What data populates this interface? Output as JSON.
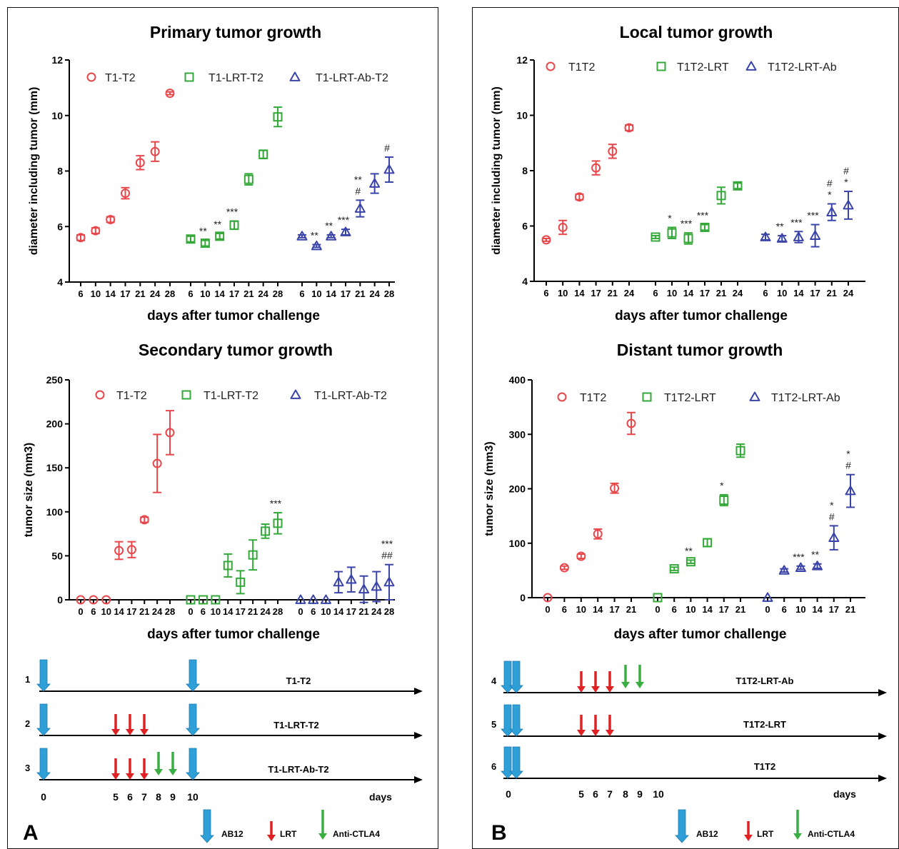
{
  "panels": [
    {
      "label": "A",
      "diagram_title_1": "T1-T2"
    },
    {
      "label": "B"
    }
  ],
  "colors": {
    "red": "#e8474b",
    "green": "#34a93a",
    "blue": "#3a44a8",
    "ab12": "#2f9fd8",
    "lrt": "#e02124",
    "ctla4": "#3aae43"
  },
  "chart_data": [
    {
      "id": "primary",
      "type": "scatter",
      "title": "Primary tumor growth",
      "xlabel": "days after tumor challenge",
      "ylabel": "diameter including tumor (mm)",
      "ylim": [
        4,
        12
      ],
      "yticks": [
        4,
        6,
        8,
        10,
        12
      ],
      "legend_position": "top",
      "series": [
        {
          "name": "T1-T2",
          "marker": "circle",
          "color": "#e8474b",
          "x": [
            6,
            10,
            14,
            17,
            21,
            24,
            28
          ],
          "y": [
            5.6,
            5.85,
            6.25,
            7.2,
            8.3,
            8.7,
            10.8
          ],
          "err": [
            0.1,
            0.1,
            0.1,
            0.2,
            0.25,
            0.35,
            0.05
          ],
          "annotations": [
            "",
            "",
            "",
            "",
            "",
            "",
            ""
          ]
        },
        {
          "name": "T1-LRT-T2",
          "marker": "square",
          "color": "#34a93a",
          "x": [
            6,
            10,
            14,
            17,
            21,
            24,
            28
          ],
          "y": [
            5.55,
            5.4,
            5.65,
            6.05,
            7.7,
            8.6,
            9.95
          ],
          "err": [
            0.1,
            0.1,
            0.1,
            0.15,
            0.2,
            0.15,
            0.35
          ],
          "annotations": [
            "",
            "**",
            "**",
            "***",
            "",
            "",
            ""
          ]
        },
        {
          "name": "T1-LRT-Ab-T2",
          "marker": "triangle",
          "color": "#3a44a8",
          "x": [
            6,
            10,
            14,
            17,
            21,
            24,
            28
          ],
          "y": [
            5.65,
            5.3,
            5.65,
            5.8,
            6.65,
            7.55,
            8.05
          ],
          "err": [
            0.05,
            0.05,
            0.05,
            0.1,
            0.3,
            0.35,
            0.45
          ],
          "annotations": [
            "",
            "**",
            "**",
            "***",
            "**\n#",
            "",
            "#"
          ]
        }
      ]
    },
    {
      "id": "local",
      "type": "scatter",
      "title": "Local tumor growth",
      "xlabel": "days after tumor challenge",
      "ylabel": "diameter including tumor (mm)",
      "ylim": [
        4,
        12
      ],
      "yticks": [
        4,
        6,
        8,
        10,
        12
      ],
      "legend_position": "top",
      "series": [
        {
          "name": "T1T2",
          "marker": "circle",
          "color": "#e8474b",
          "x": [
            6,
            10,
            14,
            17,
            21,
            24
          ],
          "y": [
            5.5,
            5.95,
            7.05,
            8.1,
            8.7,
            9.55
          ],
          "err": [
            0.05,
            0.25,
            0.1,
            0.25,
            0.25,
            0.1
          ],
          "annotations": [
            "",
            "",
            "",
            "",
            "",
            ""
          ]
        },
        {
          "name": "T1T2-LRT",
          "marker": "square",
          "color": "#34a93a",
          "x": [
            6,
            10,
            14,
            17,
            21,
            24
          ],
          "y": [
            5.6,
            5.75,
            5.55,
            5.95,
            7.1,
            7.45
          ],
          "err": [
            0.05,
            0.2,
            0.2,
            0.1,
            0.3,
            0.1
          ],
          "annotations": [
            "",
            "*",
            "***",
            "***",
            "",
            ""
          ]
        },
        {
          "name": "T1T2-LRT-Ab",
          "marker": "triangle",
          "color": "#3a44a8",
          "x": [
            6,
            10,
            14,
            17,
            21,
            24
          ],
          "y": [
            5.6,
            5.55,
            5.6,
            5.65,
            6.5,
            6.75
          ],
          "err": [
            0.1,
            0.1,
            0.2,
            0.4,
            0.3,
            0.5
          ],
          "annotations": [
            "",
            "**",
            "***",
            "***",
            "#\n*",
            "#\n*"
          ]
        }
      ]
    },
    {
      "id": "secondary",
      "type": "scatter",
      "title": "Secondary tumor growth",
      "xlabel": "days after tumor challenge",
      "ylabel": "tumor size (mm3)",
      "ylim": [
        0,
        250
      ],
      "yticks": [
        0,
        50,
        100,
        150,
        200,
        250
      ],
      "legend_position": "top",
      "series": [
        {
          "name": "T1-T2",
          "marker": "circle",
          "color": "#e8474b",
          "x": [
            0,
            6,
            10,
            14,
            17,
            21,
            24,
            28
          ],
          "y": [
            0,
            0,
            0,
            56,
            57,
            91,
            155,
            190
          ],
          "err": [
            0,
            0,
            0,
            10,
            9,
            3,
            33,
            25
          ],
          "annotations": [
            "",
            "",
            "",
            "",
            "",
            "",
            "",
            ""
          ]
        },
        {
          "name": "T1-LRT-T2",
          "marker": "square",
          "color": "#34a93a",
          "x": [
            0,
            6,
            10,
            14,
            17,
            21,
            24,
            28
          ],
          "y": [
            0,
            0,
            0,
            39,
            20,
            51,
            78,
            87
          ],
          "err": [
            0,
            0,
            0,
            13,
            13,
            17,
            8,
            12
          ],
          "annotations": [
            "",
            "",
            "",
            "",
            "",
            "",
            "",
            "***"
          ]
        },
        {
          "name": "T1-LRT-Ab-T2",
          "marker": "triangle",
          "color": "#3a44a8",
          "x": [
            0,
            6,
            10,
            14,
            17,
            21,
            24,
            28
          ],
          "y": [
            0,
            0,
            0,
            20,
            23,
            12,
            15,
            20
          ],
          "err": [
            0,
            0,
            0,
            12,
            14,
            15,
            17,
            20
          ],
          "annotations": [
            "",
            "",
            "",
            "",
            "",
            "",
            "",
            "***\n##"
          ]
        }
      ]
    },
    {
      "id": "distant",
      "type": "scatter",
      "title": "Distant tumor growth",
      "xlabel": "days after tumor challenge",
      "ylabel": "tumor size (mm3)",
      "ylim": [
        0,
        400
      ],
      "yticks": [
        0,
        100,
        200,
        300,
        400
      ],
      "legend_position": "top",
      "series": [
        {
          "name": "T1T2",
          "marker": "circle",
          "color": "#e8474b",
          "x": [
            0,
            6,
            10,
            14,
            17,
            21
          ],
          "y": [
            0,
            55,
            76,
            117,
            201,
            320
          ],
          "err": [
            0,
            3,
            4,
            9,
            9,
            20
          ],
          "annotations": [
            "",
            "",
            "",
            "",
            "",
            ""
          ]
        },
        {
          "name": "T1T2-LRT",
          "marker": "square",
          "color": "#34a93a",
          "x": [
            0,
            6,
            10,
            14,
            17,
            21
          ],
          "y": [
            0,
            53,
            66,
            101,
            179,
            270
          ],
          "err": [
            0,
            3,
            3,
            7,
            10,
            12
          ],
          "annotations": [
            "",
            "",
            "**",
            "",
            "*",
            ""
          ]
        },
        {
          "name": "T1T2-LRT-Ab",
          "marker": "triangle",
          "color": "#3a44a8",
          "x": [
            0,
            6,
            10,
            14,
            17,
            21
          ],
          "y": [
            0,
            50,
            55,
            58,
            110,
            196
          ],
          "err": [
            0,
            3,
            3,
            4,
            22,
            30
          ],
          "annotations": [
            "",
            "",
            "***",
            "**",
            "*\n#",
            "*\n#"
          ]
        }
      ]
    }
  ],
  "schedules": [
    {
      "panel": "A",
      "days_label": "days",
      "day_ticks": [
        "0",
        "5",
        "6",
        "7",
        "8",
        "9",
        "10"
      ],
      "rows": [
        {
          "number": "1",
          "label": "T1-T2",
          "AB12": [
            0,
            10
          ],
          "LRT": [],
          "Anti-CTLA4": []
        },
        {
          "number": "2",
          "label": "T1-LRT-T2",
          "AB12": [
            0,
            10
          ],
          "LRT": [
            5,
            6,
            7
          ],
          "Anti-CTLA4": []
        },
        {
          "number": "3",
          "label": "T1-LRT-Ab-T2",
          "AB12": [
            0,
            10
          ],
          "LRT": [
            5,
            6,
            7
          ],
          "Anti-CTLA4": [
            8,
            9
          ]
        }
      ]
    },
    {
      "panel": "B",
      "days_label": "days",
      "day_ticks": [
        "0",
        "5",
        "6",
        "7",
        "8",
        "9",
        "10"
      ],
      "rows": [
        {
          "number": "4",
          "label": "T1T2-LRT-Ab",
          "AB12": [
            0,
            0
          ],
          "LRT": [
            5,
            6,
            7
          ],
          "Anti-CTLA4": [
            8,
            9
          ]
        },
        {
          "number": "5",
          "label": "T1T2-LRT",
          "AB12": [
            0,
            0
          ],
          "LRT": [
            5,
            6,
            7
          ],
          "Anti-CTLA4": []
        },
        {
          "number": "6",
          "label": "T1T2",
          "AB12": [
            0,
            0
          ],
          "LRT": [],
          "Anti-CTLA4": []
        }
      ]
    }
  ],
  "legend_arrows": [
    "AB12",
    "LRT",
    "Anti-CTLA4"
  ]
}
